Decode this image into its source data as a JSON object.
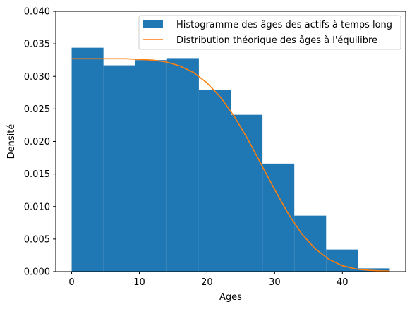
{
  "chart_data": {
    "type": "bar",
    "xlabel": "Ages",
    "ylabel": "Densité",
    "xlim": [
      -2.35,
      49.35
    ],
    "ylim": [
      0,
      0.04
    ],
    "grid": false,
    "legend_position": "top-right",
    "x_ticks": [
      0,
      10,
      20,
      30,
      40
    ],
    "x_tick_labels": [
      "0",
      "10",
      "20",
      "30",
      "40"
    ],
    "y_ticks": [
      0,
      0.005,
      0.01,
      0.015,
      0.02,
      0.025,
      0.03,
      0.035,
      0.04
    ],
    "y_tick_labels": [
      "0.000",
      "0.005",
      "0.010",
      "0.015",
      "0.020",
      "0.025",
      "0.030",
      "0.035",
      "0.040"
    ],
    "histogram": {
      "name": "Histogramme des âges des actifs à temps long",
      "color": "#1f77b4",
      "bin_edges": [
        0,
        4.7,
        9.4,
        14.1,
        18.8,
        23.5,
        28.2,
        32.9,
        37.6,
        42.3,
        47.0
      ],
      "densities": [
        0.0344,
        0.0317,
        0.0325,
        0.0328,
        0.0279,
        0.0241,
        0.0166,
        0.0086,
        0.0034,
        0.0005
      ]
    },
    "curve": {
      "name": "Distribution théorique des âges à l'équilibre",
      "color": "#ff7f0e",
      "x": [
        0,
        2,
        4,
        6,
        8,
        10,
        12,
        14,
        16,
        18,
        20,
        22,
        24,
        26,
        28,
        30,
        32,
        34,
        36,
        38,
        40,
        42,
        44,
        46,
        47
      ],
      "y": [
        0.0327,
        0.0327,
        0.0327,
        0.0327,
        0.0327,
        0.0326,
        0.0325,
        0.0322,
        0.0316,
        0.0306,
        0.029,
        0.0268,
        0.0239,
        0.0204,
        0.0165,
        0.0126,
        0.0089,
        0.0058,
        0.0035,
        0.0019,
        0.0009,
        0.0004,
        0.0002,
        0.0001,
        0.0001
      ]
    }
  }
}
